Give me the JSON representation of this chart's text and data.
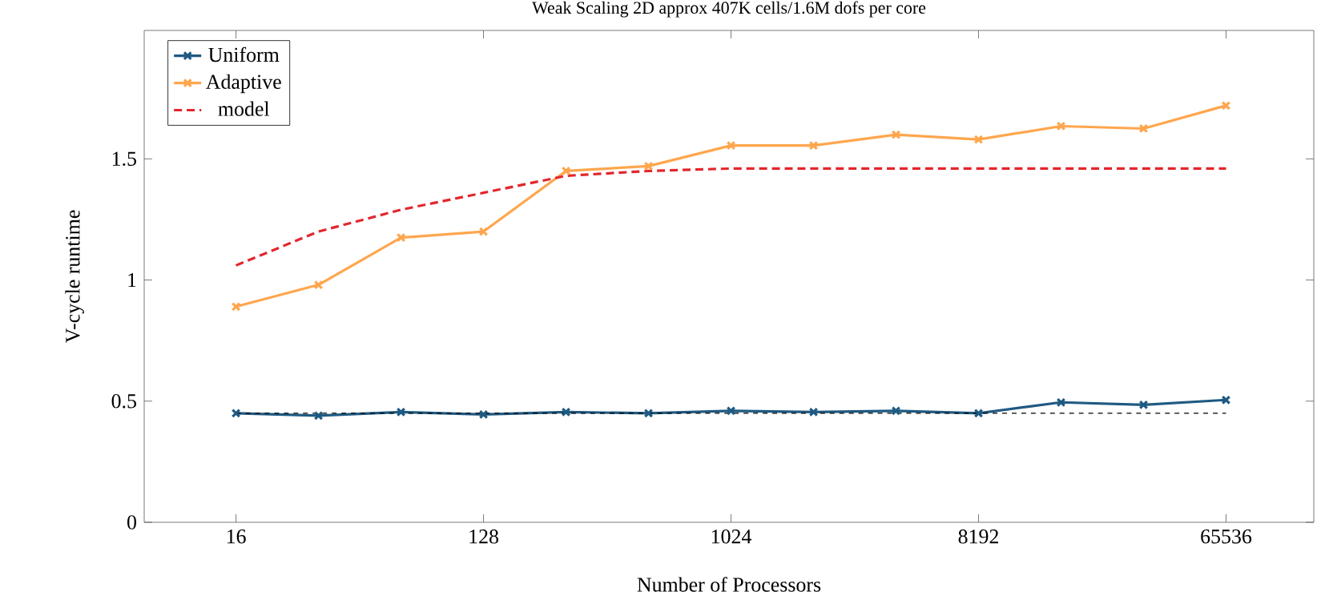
{
  "chart_data": {
    "type": "line",
    "title": "Weak Scaling 2D approx 407K cells/1.6M dofs per core",
    "xlabel": "Number of Processors",
    "ylabel": "V-cycle runtime",
    "x": [
      16,
      32,
      64,
      128,
      256,
      512,
      1024,
      2048,
      4096,
      8192,
      16384,
      32768,
      65536
    ],
    "log": "x",
    "xlim": [
      7.4,
      137000
    ],
    "ylim": [
      0,
      2.03
    ],
    "xticks": [
      16,
      128,
      1024,
      8192,
      65536
    ],
    "yticks": [
      0,
      0.5,
      1,
      1.5
    ],
    "legend": "top left",
    "marker": "cross",
    "line_style": "solid",
    "series": [
      {
        "name": "Uniform",
        "color": "#1f5a82",
        "values": [
          0.45,
          0.44,
          0.455,
          0.445,
          0.455,
          0.45,
          0.46,
          0.455,
          0.46,
          0.45,
          0.495,
          0.485,
          0.505
        ]
      },
      {
        "name": "Adaptive",
        "color": "#ffa64d",
        "values": [
          0.89,
          0.98,
          1.175,
          1.2,
          1.45,
          1.47,
          1.555,
          1.555,
          1.6,
          1.58,
          1.635,
          1.625,
          1.72
        ]
      },
      {
        "name": "model",
        "color": "#e3262d",
        "marker": "none",
        "line_style": "dashed",
        "values": [
          1.06,
          1.2,
          1.29,
          1.36,
          1.43,
          1.45,
          1.46,
          1.46,
          1.46,
          1.46,
          1.46,
          1.46,
          1.46
        ]
      },
      {
        "color": "#000000",
        "marker": "none",
        "line_style": "dashed",
        "values": [
          0.45,
          0.45,
          0.45,
          0.45,
          0.45,
          0.45,
          0.45,
          0.45,
          0.45,
          0.45,
          0.45,
          0.45,
          0.45
        ]
      }
    ]
  }
}
